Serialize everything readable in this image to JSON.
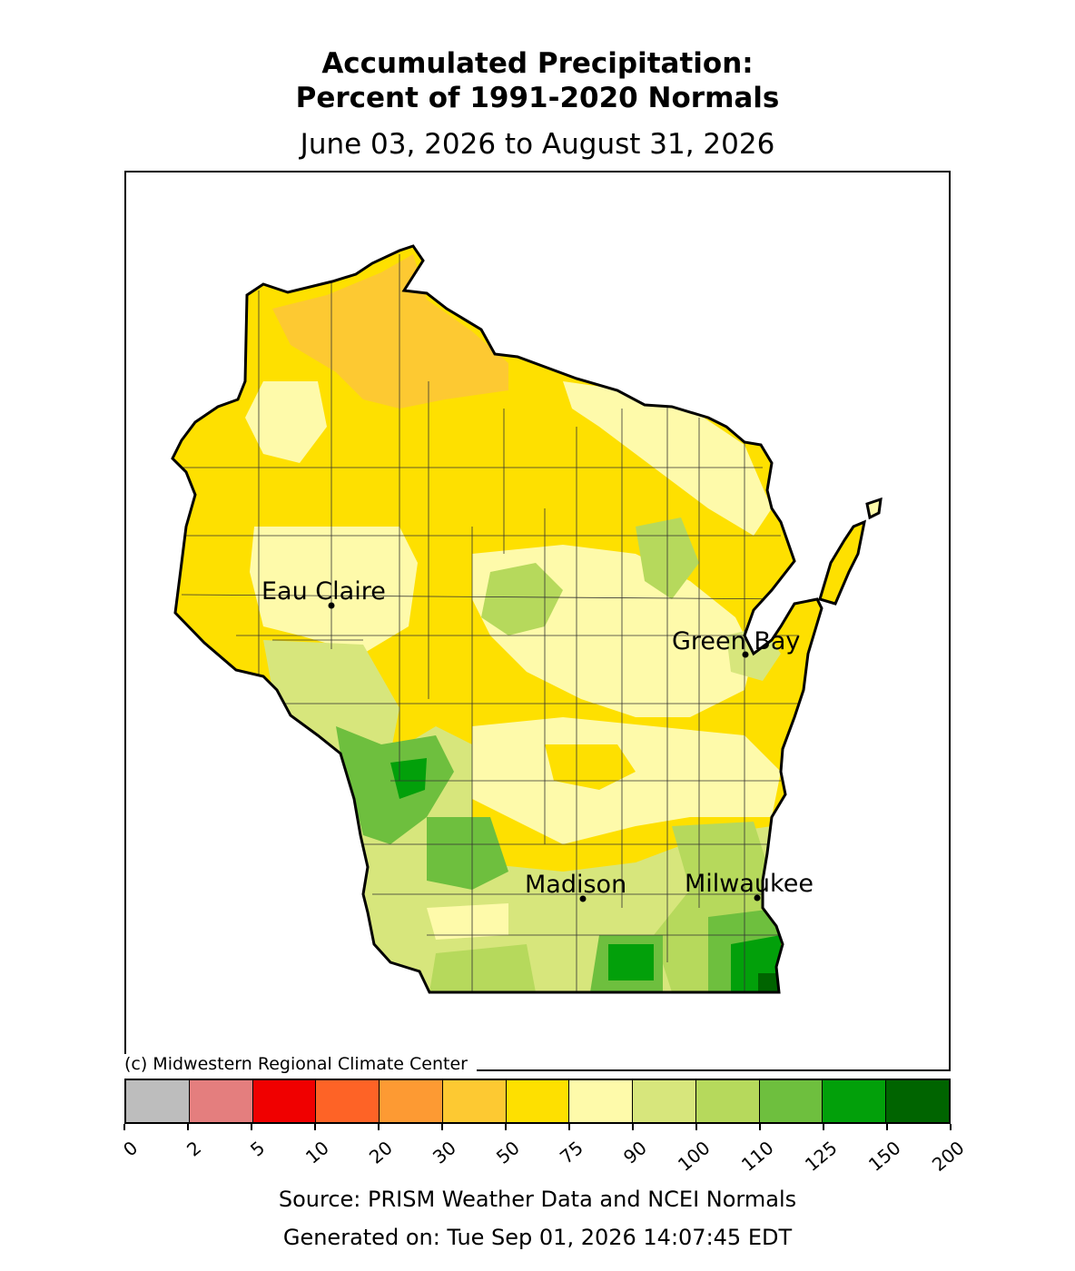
{
  "header": {
    "title_line1": "Accumulated Precipitation:",
    "title_line2": "Percent of 1991-2020 Normals",
    "date_range": "June 03, 2026 to August 31, 2026"
  },
  "map": {
    "copyright": "(c) Midwestern Regional Climate Center",
    "cities": [
      {
        "name": "Eau Claire"
      },
      {
        "name": "Green Bay"
      },
      {
        "name": "Madison"
      },
      {
        "name": "Milwaukee"
      }
    ]
  },
  "legend": {
    "bins": [
      {
        "color": "#bdbdbd"
      },
      {
        "color": "#e47e7e"
      },
      {
        "color": "#f00000"
      },
      {
        "color": "#fe6326"
      },
      {
        "color": "#fd9a33"
      },
      {
        "color": "#fdc932"
      },
      {
        "color": "#fee000"
      },
      {
        "color": "#fefaaa"
      },
      {
        "color": "#d7e67c"
      },
      {
        "color": "#b6d95c"
      },
      {
        "color": "#6ebf3e"
      },
      {
        "color": "#02a00a"
      },
      {
        "color": "#006400"
      }
    ],
    "ticks": [
      "0",
      "2",
      "5",
      "10",
      "20",
      "30",
      "50",
      "75",
      "90",
      "100",
      "110",
      "125",
      "150",
      "200"
    ]
  },
  "footer": {
    "source": "Source: PRISM Weather Data and NCEI Normals",
    "generated": "Generated on: Tue Sep 01, 2026 14:07:45 EDT"
  }
}
